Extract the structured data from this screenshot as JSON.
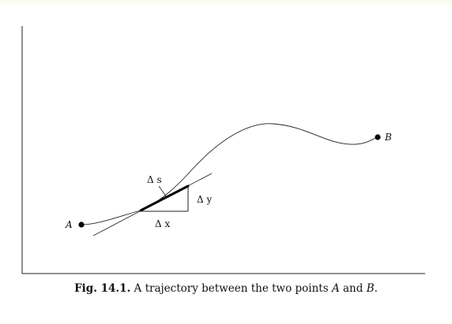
{
  "figure": {
    "labels": {
      "point_a": "A",
      "point_b": "B",
      "delta_s": "Δ s",
      "delta_x": "Δ x",
      "delta_y": "Δ y"
    }
  },
  "caption": {
    "fig_label": "Fig. 14.1.",
    "text_part1": " A trajectory between the two points ",
    "point_a": "A",
    "text_part2": " and ",
    "point_b": "B",
    "text_part3": "."
  }
}
